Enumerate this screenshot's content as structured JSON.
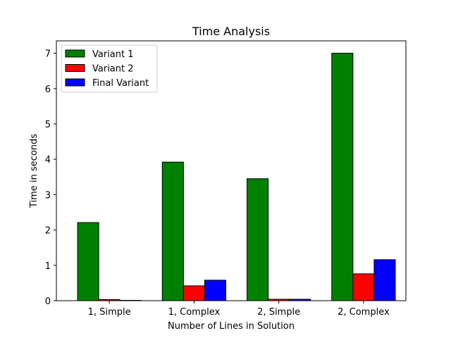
{
  "chart_data": {
    "type": "bar",
    "title": "Time Analysis",
    "xlabel": "Number of Lines in Solution",
    "ylabel": "Time in seconds",
    "categories": [
      "1, Simple",
      "1, Complex",
      "2, Simple",
      "2, Complex"
    ],
    "series": [
      {
        "name": "Variant 1",
        "color": "#008000",
        "values": [
          2.21,
          3.92,
          3.45,
          7.0
        ]
      },
      {
        "name": "Variant 2",
        "color": "#ff0000",
        "values": [
          0.03,
          0.42,
          0.04,
          0.76
        ]
      },
      {
        "name": "Final Variant",
        "color": "#0000ff",
        "values": [
          0.01,
          0.58,
          0.04,
          1.16
        ]
      }
    ],
    "ylim": [
      0,
      7.35
    ],
    "yticks": [
      "0",
      "1",
      "2",
      "3",
      "4",
      "5",
      "6",
      "7"
    ],
    "legend_position": "top-left",
    "grid": false
  }
}
